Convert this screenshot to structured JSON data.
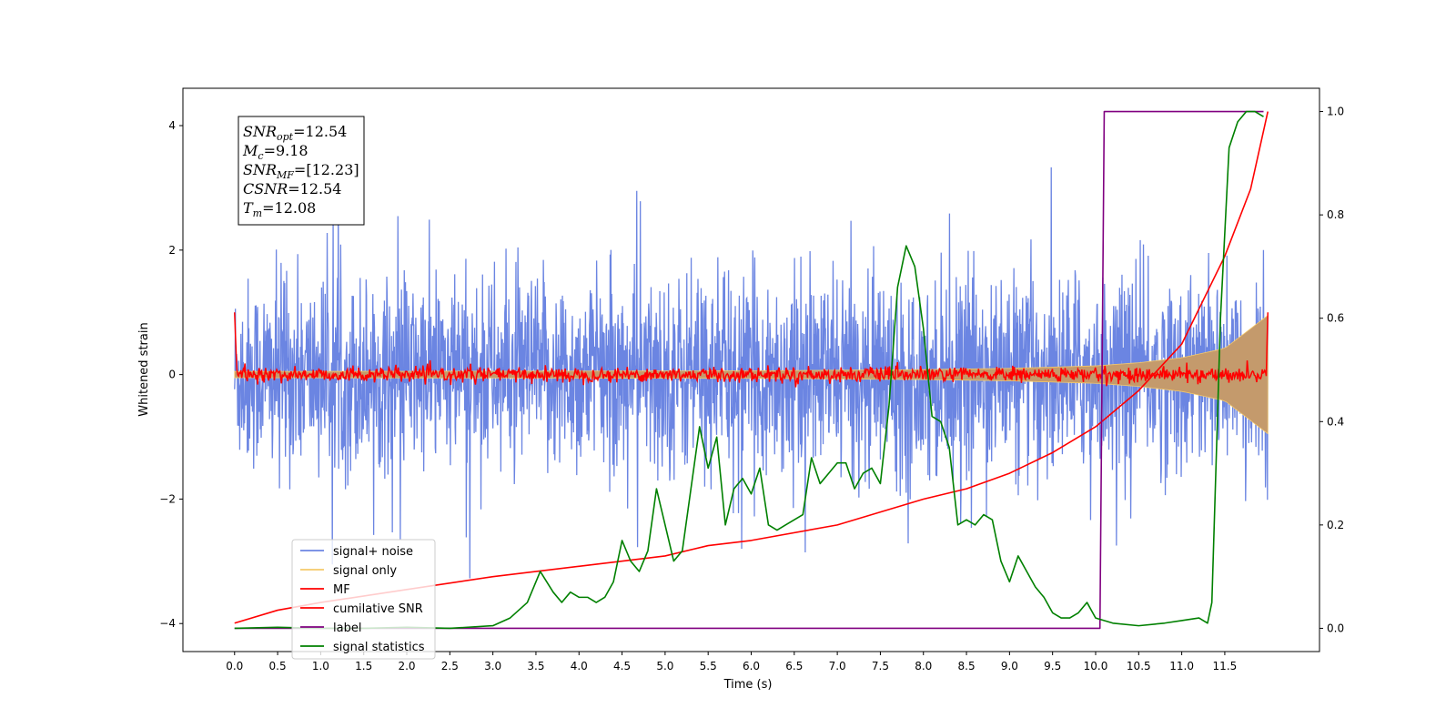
{
  "chart_data": {
    "type": "line",
    "xlabel": "Time (s)",
    "ylabel": "Whitened strain",
    "xlim": [
      -0.6,
      12.6
    ],
    "ylim": [
      -4.45,
      4.6
    ],
    "y2lim": [
      -0.045,
      1.045
    ],
    "xticks": [
      0.0,
      0.5,
      1.0,
      1.5,
      2.0,
      2.5,
      3.0,
      3.5,
      4.0,
      4.5,
      5.0,
      5.5,
      6.0,
      6.5,
      7.0,
      7.5,
      8.0,
      8.5,
      9.0,
      9.5,
      10.0,
      10.5,
      11.0,
      11.5
    ],
    "xtick_labels": [
      "0.0",
      "0.5",
      "1.0",
      "1.5",
      "2.0",
      "2.5",
      "3.0",
      "3.5",
      "4.0",
      "4.5",
      "5.0",
      "5.5",
      "6.0",
      "6.5",
      "7.0",
      "7.5",
      "8.0",
      "8.5",
      "9.0",
      "9.5",
      "10.0",
      "10.5",
      "11.0",
      "11.5"
    ],
    "yticks": [
      -4,
      -2,
      0,
      2,
      4
    ],
    "ytick_labels": [
      "−4",
      "−2",
      "0",
      "2",
      "4"
    ],
    "y2ticks": [
      0.0,
      0.2,
      0.4,
      0.6,
      0.8,
      1.0
    ],
    "y2tick_labels": [
      "0.0",
      "0.2",
      "0.4",
      "0.6",
      "0.8",
      "1.0"
    ],
    "grid": false,
    "legend_position": "lower-left",
    "series": [
      {
        "name": "signal+ noise",
        "color": "#6b85e2",
        "axis": "left",
        "style": "noise-band",
        "t_start": 0.0,
        "t_end": 12.0,
        "std": 0.8,
        "peak_min": -4.0,
        "peak_max": 4.15
      },
      {
        "name": "signal only",
        "color": "#f5c96a",
        "axis": "left",
        "style": "chirp-envelope",
        "fill_color": "#c49a6c",
        "t_start": 0.0,
        "t_end": 12.0,
        "envelope": {
          "x": [
            0.0,
            6.0,
            8.0,
            9.0,
            10.0,
            10.5,
            11.0,
            11.5,
            12.0
          ],
          "y": [
            0.05,
            0.06,
            0.08,
            0.1,
            0.14,
            0.19,
            0.27,
            0.42,
            0.95
          ]
        }
      },
      {
        "name": "MF",
        "color": "#ff0000",
        "axis": "left",
        "style": "jitter",
        "t_start": 0.0,
        "t_end": 12.0,
        "std": 0.06,
        "start_value": 1.0,
        "end_value": 1.0
      },
      {
        "name": "cumilative SNR",
        "color": "#ff0000",
        "axis": "right",
        "x": [
          0.0,
          0.5,
          1.0,
          2.0,
          3.0,
          4.0,
          5.0,
          5.5,
          6.0,
          7.0,
          8.0,
          8.5,
          9.0,
          9.5,
          10.0,
          10.5,
          11.0,
          11.5,
          11.8,
          12.0
        ],
        "y": [
          0.01,
          0.035,
          0.05,
          0.075,
          0.1,
          0.12,
          0.14,
          0.16,
          0.17,
          0.2,
          0.25,
          0.27,
          0.3,
          0.34,
          0.39,
          0.46,
          0.55,
          0.72,
          0.85,
          1.0
        ]
      },
      {
        "name": "label",
        "color": "#800080",
        "axis": "right",
        "x": [
          0.0,
          10.05,
          10.1,
          11.95
        ],
        "y": [
          0.0,
          0.0,
          1.0,
          1.0
        ]
      },
      {
        "name": "signal statistics",
        "color": "#008000",
        "axis": "right",
        "x": [
          0.0,
          0.5,
          1.0,
          1.5,
          2.0,
          2.5,
          3.0,
          3.2,
          3.4,
          3.55,
          3.7,
          3.8,
          3.9,
          4.0,
          4.1,
          4.2,
          4.3,
          4.4,
          4.5,
          4.6,
          4.7,
          4.8,
          4.9,
          5.0,
          5.1,
          5.2,
          5.3,
          5.4,
          5.5,
          5.6,
          5.7,
          5.8,
          5.9,
          6.0,
          6.1,
          6.2,
          6.3,
          6.4,
          6.5,
          6.6,
          6.7,
          6.8,
          6.9,
          7.0,
          7.1,
          7.2,
          7.3,
          7.4,
          7.5,
          7.6,
          7.7,
          7.8,
          7.9,
          8.0,
          8.1,
          8.2,
          8.3,
          8.4,
          8.5,
          8.6,
          8.7,
          8.8,
          8.9,
          9.0,
          9.1,
          9.2,
          9.3,
          9.4,
          9.5,
          9.6,
          9.7,
          9.8,
          9.9,
          10.0,
          10.2,
          10.5,
          10.8,
          11.0,
          11.2,
          11.3,
          11.35,
          11.45,
          11.55,
          11.65,
          11.75,
          11.85,
          11.95
        ],
        "y": [
          0.0,
          0.002,
          0.0,
          0.0,
          0.002,
          0.0,
          0.005,
          0.02,
          0.05,
          0.11,
          0.07,
          0.05,
          0.07,
          0.06,
          0.06,
          0.05,
          0.06,
          0.09,
          0.17,
          0.13,
          0.11,
          0.15,
          0.27,
          0.2,
          0.13,
          0.15,
          0.27,
          0.39,
          0.31,
          0.37,
          0.2,
          0.27,
          0.29,
          0.26,
          0.31,
          0.2,
          0.19,
          0.2,
          0.21,
          0.22,
          0.33,
          0.28,
          0.3,
          0.32,
          0.32,
          0.27,
          0.3,
          0.31,
          0.28,
          0.43,
          0.66,
          0.74,
          0.7,
          0.58,
          0.41,
          0.4,
          0.35,
          0.2,
          0.21,
          0.2,
          0.22,
          0.21,
          0.13,
          0.09,
          0.14,
          0.11,
          0.08,
          0.06,
          0.03,
          0.02,
          0.02,
          0.03,
          0.05,
          0.02,
          0.01,
          0.005,
          0.01,
          0.015,
          0.02,
          0.01,
          0.05,
          0.6,
          0.93,
          0.98,
          1.0,
          1.0,
          0.99
        ]
      }
    ],
    "legend_entries": [
      "signal+ noise",
      "signal only",
      "MF",
      "cumilative SNR",
      "label",
      "signal statistics"
    ]
  },
  "info_box": {
    "lines": [
      {
        "main": "SNR",
        "sub": "opt",
        "value": "=12.54"
      },
      {
        "main": "M",
        "sub": "c",
        "value": "=9.18"
      },
      {
        "main": "SNR",
        "sub": "MF",
        "value": "=[12.23]"
      },
      {
        "main": "CSNR",
        "sub": "",
        "value": "=12.54"
      },
      {
        "main": "T",
        "sub": "m",
        "value": "=12.08"
      }
    ]
  }
}
